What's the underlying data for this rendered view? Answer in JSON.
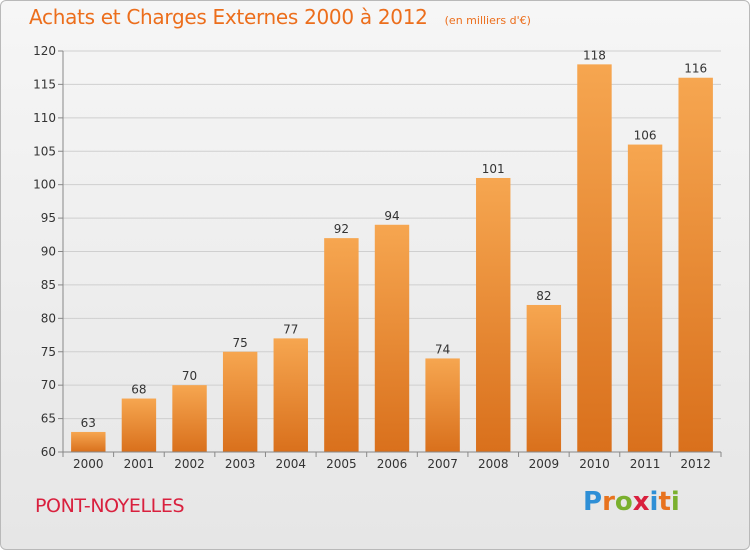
{
  "header": {
    "title": "Achats et Charges Externes 2000 à 2012",
    "subtitle": "(en milliers d'€)"
  },
  "footer": {
    "commune": "PONT-NOYELLES",
    "brand_letters": [
      "P",
      "r",
      "o",
      "x",
      "i",
      "t",
      "i"
    ],
    "brand_colors": [
      "#2e8fd6",
      "#e8731e",
      "#7ab02e",
      "#d9203e",
      "#2e8fd6",
      "#e8731e",
      "#7ab02e"
    ]
  },
  "colors": {
    "bar_top": "#f6a650",
    "bar_bottom": "#d9701c",
    "grid": "#cfcfcf",
    "axis": "#888888",
    "text": "#333333",
    "title": "#ec6e1c"
  },
  "chart_data": {
    "type": "bar",
    "categories": [
      "2000",
      "2001",
      "2002",
      "2003",
      "2004",
      "2005",
      "2006",
      "2007",
      "2008",
      "2009",
      "2010",
      "2011",
      "2012"
    ],
    "values": [
      63,
      68,
      70,
      75,
      77,
      92,
      94,
      74,
      101,
      82,
      118,
      106,
      116
    ],
    "title": "Achats et Charges Externes 2000 à 2012",
    "ylim": [
      60,
      120
    ],
    "yticks": [
      60,
      65,
      70,
      75,
      80,
      85,
      90,
      95,
      100,
      105,
      110,
      115,
      120
    ],
    "grid": true,
    "data_labels": true
  }
}
